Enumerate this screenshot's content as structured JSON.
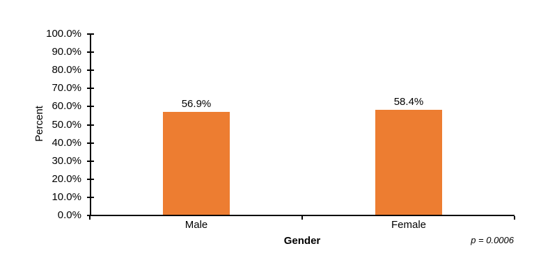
{
  "page": {
    "background_color": "#ffffff"
  },
  "chart_data": {
    "type": "bar",
    "title": "",
    "categories": [
      "Male",
      "Female"
    ],
    "values": [
      56.9,
      58.4
    ],
    "data_labels": [
      "56.9%",
      "58.4%"
    ],
    "xlabel": "Gender",
    "ylabel": "Percent",
    "ylim": [
      0,
      100
    ],
    "ytick_step": 10,
    "ytick_labels": [
      "0.0%",
      "10.0%",
      "20.0%",
      "30.0%",
      "40.0%",
      "50.0%",
      "60.0%",
      "70.0%",
      "80.0%",
      "90.0%",
      "100.0%"
    ],
    "annotation": "p = 0.0006",
    "bar_color": "#ED7D31",
    "axis_color": "#000000",
    "grid": false,
    "legend_position": "none"
  }
}
